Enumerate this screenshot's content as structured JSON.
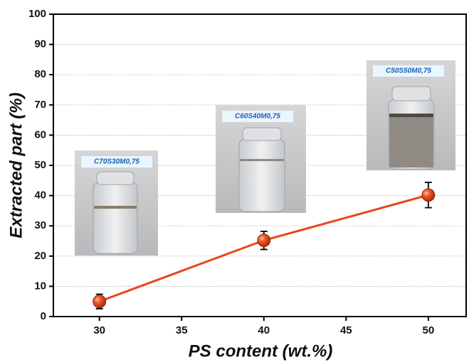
{
  "chart_data": {
    "type": "line",
    "x_label": "PS content (wt.%)",
    "y_label": "Extracted part (%)",
    "x": [
      30,
      40,
      50
    ],
    "series": [
      {
        "color": "#e8461e",
        "values": [
          5,
          25.2,
          40.2
        ],
        "errors": [
          2.4,
          3,
          4.2
        ]
      }
    ],
    "xlim": [
      27.2,
      52.3
    ],
    "xticks": [
      30,
      35,
      40,
      45,
      50
    ],
    "ylim": [
      0,
      100
    ],
    "yticks": [
      0,
      10,
      20,
      30,
      40,
      50,
      60,
      70,
      80,
      90,
      100
    ],
    "grid": true,
    "annotations": [
      "C70S30M0,75",
      "C60S40M0,75",
      "C50S50M0,75"
    ]
  }
}
